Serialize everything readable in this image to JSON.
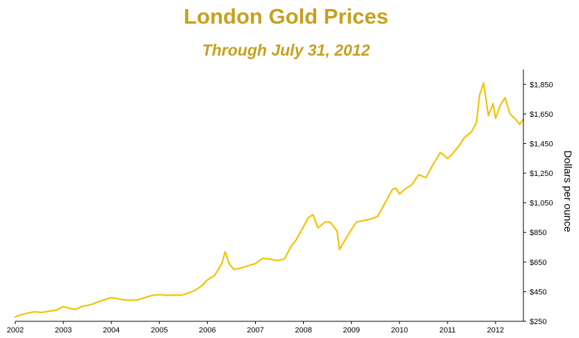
{
  "chart_data": {
    "type": "line",
    "title": "London Gold Prices",
    "subtitle": "Through July 31, 2012",
    "ylabel": "Dollars per ounce",
    "xlabel": "",
    "ylim": [
      250,
      1950
    ],
    "xlim": [
      2002.0,
      2012.58
    ],
    "y_axis_side": "right",
    "grid": false,
    "line_color": "#f2c300",
    "title_color": "#c8a01e",
    "x_ticks": [
      "2002",
      "2003",
      "2004",
      "2005",
      "2006",
      "2007",
      "2008",
      "2009",
      "2010",
      "2011",
      "2012"
    ],
    "y_ticks": [
      {
        "value": 250,
        "label": "$250"
      },
      {
        "value": 450,
        "label": "$450"
      },
      {
        "value": 650,
        "label": "$650"
      },
      {
        "value": 850,
        "label": "$850"
      },
      {
        "value": 1050,
        "label": "$1,050"
      },
      {
        "value": 1250,
        "label": "$1,250"
      },
      {
        "value": 1450,
        "label": "$1,450"
      },
      {
        "value": 1650,
        "label": "$1,650"
      },
      {
        "value": 1850,
        "label": "$1,850"
      }
    ],
    "series": [
      {
        "x": [
          2002.0,
          2002.1,
          2002.25,
          2002.4,
          2002.55,
          2002.7,
          2002.85,
          2003.0,
          2003.1,
          2003.25,
          2003.4,
          2003.55,
          2003.7,
          2003.85,
          2004.0,
          2004.1,
          2004.25,
          2004.4,
          2004.55,
          2004.7,
          2004.85,
          2005.0,
          2005.15,
          2005.3,
          2005.45,
          2005.6,
          2005.75,
          2005.9,
          2006.0,
          2006.15,
          2006.3,
          2006.37,
          2006.45,
          2006.55,
          2006.7,
          2006.85,
          2007.0,
          2007.15,
          2007.3,
          2007.45,
          2007.6,
          2007.75,
          2007.85,
          2008.0,
          2008.1,
          2008.2,
          2008.3,
          2008.45,
          2008.55,
          2008.7,
          2008.75,
          2008.85,
          2009.0,
          2009.1,
          2009.25,
          2009.4,
          2009.55,
          2009.7,
          2009.85,
          2009.92,
          2010.0,
          2010.1,
          2010.25,
          2010.4,
          2010.55,
          2010.7,
          2010.85,
          2011.0,
          2011.1,
          2011.25,
          2011.35,
          2011.5,
          2011.6,
          2011.67,
          2011.75,
          2011.85,
          2011.95,
          2012.0,
          2012.1,
          2012.2,
          2012.3,
          2012.4,
          2012.5,
          2012.58
        ],
        "y": [
          280,
          292,
          305,
          315,
          310,
          318,
          325,
          350,
          340,
          330,
          352,
          360,
          378,
          395,
          410,
          405,
          395,
          392,
          395,
          410,
          425,
          430,
          425,
          428,
          425,
          440,
          460,
          495,
          530,
          560,
          640,
          720,
          640,
          600,
          610,
          625,
          640,
          675,
          670,
          660,
          670,
          760,
          800,
          890,
          950,
          970,
          880,
          920,
          920,
          860,
          735,
          790,
          870,
          920,
          930,
          940,
          960,
          1050,
          1140,
          1150,
          1110,
          1140,
          1170,
          1240,
          1220,
          1310,
          1390,
          1350,
          1380,
          1440,
          1490,
          1530,
          1590,
          1780,
          1860,
          1640,
          1720,
          1620,
          1710,
          1760,
          1650,
          1620,
          1580,
          1614
        ]
      }
    ]
  }
}
